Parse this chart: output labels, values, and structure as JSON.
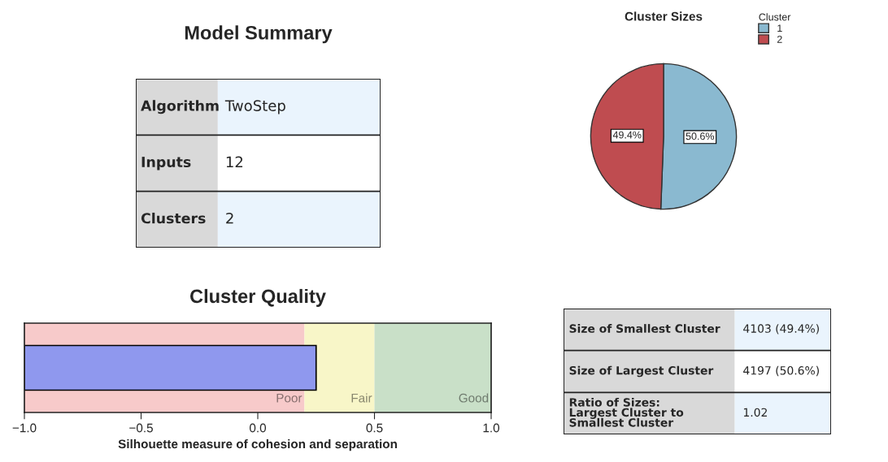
{
  "chart_data": [
    {
      "type": "other",
      "title": "Model Summary",
      "annotations": [
        "Algorithm",
        "TwoStep",
        "Inputs",
        "12",
        "Clusters",
        "2"
      ]
    },
    {
      "type": "pie",
      "title": "Cluster Sizes",
      "categories": [
        "1",
        "2"
      ],
      "values": [
        50.6,
        49.4
      ],
      "colors": [
        "#8ab9d0",
        "#bf4c50"
      ],
      "value_labels": [
        "50.6%",
        "49.4%"
      ],
      "legend": "top right",
      "legend_title": "Cluster"
    },
    {
      "type": "bar",
      "title": "Cluster Quality",
      "orientation": "horizontal",
      "categories": [
        null
      ],
      "values": [
        1.25
      ],
      "base": [
        -1
      ],
      "color": "#8f98ee",
      "xlabel": "Silhouette measure of cohesion and separation",
      "xlim": [
        -1,
        1
      ],
      "xticks": [
        {
          "value": -1,
          "label": "−1.0"
        },
        {
          "value": -0.5,
          "label": "−0.5"
        },
        {
          "value": 0,
          "label": "0.0"
        },
        {
          "value": 0.5,
          "label": "0.5"
        },
        {
          "value": 1,
          "label": "1.0"
        }
      ],
      "bands": [
        {
          "axis": "x",
          "from": -1,
          "to": 0.2,
          "label": "Poor",
          "color": "#f7caca"
        },
        {
          "axis": "x",
          "from": 0.2,
          "to": 0.5,
          "label": "Fair",
          "color": "#f8f6c8"
        },
        {
          "axis": "x",
          "from": 0.5,
          "to": 1,
          "label": "Good",
          "color": "#c9e0c8"
        }
      ],
      "tick_labels": "x",
      "grid": false
    },
    {
      "type": "other",
      "annotations": [
        "Size of Smallest Cluster",
        "4103 (49.4%)",
        "Size of Largest Cluster",
        "4197 (50.6%)",
        "Ratio of Sizes:\nLargest Cluster to\nSmallest Cluster",
        "1.02"
      ]
    }
  ]
}
